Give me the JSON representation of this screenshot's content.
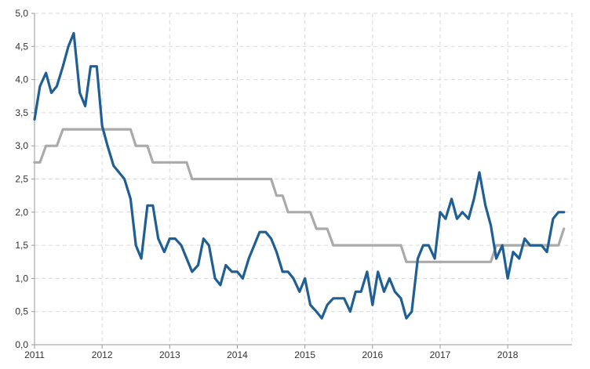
{
  "chart_data": {
    "type": "line",
    "title": "",
    "xlabel": "",
    "ylabel": "",
    "xlim": [
      2011,
      2018.95
    ],
    "ylim": [
      0,
      5
    ],
    "grid": true,
    "legend": "none",
    "x_ticks": [
      2011,
      2012,
      2013,
      2014,
      2015,
      2016,
      2017,
      2018
    ],
    "x_tick_labels": [
      "2011",
      "2012",
      "2013",
      "2014",
      "2015",
      "2016",
      "2017",
      "2018"
    ],
    "y_ticks": [
      0,
      0.5,
      1,
      1.5,
      2,
      2.5,
      3,
      3.5,
      4,
      4.5,
      5
    ],
    "y_tick_labels": [
      "0,0",
      "0,5",
      "1,0",
      "1,5",
      "2,0",
      "2,5",
      "3,0",
      "3,5",
      "4,0",
      "4,5",
      "5,0"
    ],
    "series": [
      {
        "color": "#1f5f94",
        "values": [
          [
            2011.0,
            3.4
          ],
          [
            2011.08,
            3.9
          ],
          [
            2011.17,
            4.1
          ],
          [
            2011.25,
            3.8
          ],
          [
            2011.33,
            3.9
          ],
          [
            2011.42,
            4.2
          ],
          [
            2011.5,
            4.5
          ],
          [
            2011.58,
            4.7
          ],
          [
            2011.67,
            3.8
          ],
          [
            2011.75,
            3.6
          ],
          [
            2011.83,
            4.2
          ],
          [
            2011.92,
            4.2
          ],
          [
            2012.0,
            3.3
          ],
          [
            2012.08,
            3.0
          ],
          [
            2012.17,
            2.7
          ],
          [
            2012.25,
            2.6
          ],
          [
            2012.33,
            2.5
          ],
          [
            2012.42,
            2.2
          ],
          [
            2012.5,
            1.5
          ],
          [
            2012.58,
            1.3
          ],
          [
            2012.67,
            2.1
          ],
          [
            2012.75,
            2.1
          ],
          [
            2012.83,
            1.6
          ],
          [
            2012.92,
            1.4
          ],
          [
            2013.0,
            1.6
          ],
          [
            2013.08,
            1.6
          ],
          [
            2013.17,
            1.5
          ],
          [
            2013.25,
            1.3
          ],
          [
            2013.33,
            1.1
          ],
          [
            2013.42,
            1.2
          ],
          [
            2013.5,
            1.6
          ],
          [
            2013.58,
            1.5
          ],
          [
            2013.67,
            1.0
          ],
          [
            2013.75,
            0.9
          ],
          [
            2013.83,
            1.2
          ],
          [
            2013.92,
            1.1
          ],
          [
            2014.0,
            1.1
          ],
          [
            2014.08,
            1.0
          ],
          [
            2014.17,
            1.3
          ],
          [
            2014.25,
            1.5
          ],
          [
            2014.33,
            1.7
          ],
          [
            2014.42,
            1.7
          ],
          [
            2014.5,
            1.6
          ],
          [
            2014.58,
            1.4
          ],
          [
            2014.67,
            1.1
          ],
          [
            2014.75,
            1.1
          ],
          [
            2014.83,
            1.0
          ],
          [
            2014.92,
            0.8
          ],
          [
            2015.0,
            1.0
          ],
          [
            2015.08,
            0.6
          ],
          [
            2015.17,
            0.5
          ],
          [
            2015.25,
            0.4
          ],
          [
            2015.33,
            0.6
          ],
          [
            2015.42,
            0.7
          ],
          [
            2015.5,
            0.7
          ],
          [
            2015.58,
            0.7
          ],
          [
            2015.67,
            0.5
          ],
          [
            2015.75,
            0.8
          ],
          [
            2015.83,
            0.8
          ],
          [
            2015.92,
            1.1
          ],
          [
            2016.0,
            0.6
          ],
          [
            2016.08,
            1.1
          ],
          [
            2016.17,
            0.8
          ],
          [
            2016.25,
            1.0
          ],
          [
            2016.33,
            0.8
          ],
          [
            2016.42,
            0.7
          ],
          [
            2016.5,
            0.4
          ],
          [
            2016.58,
            0.5
          ],
          [
            2016.67,
            1.3
          ],
          [
            2016.75,
            1.5
          ],
          [
            2016.83,
            1.5
          ],
          [
            2016.92,
            1.3
          ],
          [
            2017.0,
            2.0
          ],
          [
            2017.08,
            1.9
          ],
          [
            2017.17,
            2.2
          ],
          [
            2017.25,
            1.9
          ],
          [
            2017.33,
            2.0
          ],
          [
            2017.42,
            1.9
          ],
          [
            2017.5,
            2.2
          ],
          [
            2017.58,
            2.6
          ],
          [
            2017.67,
            2.1
          ],
          [
            2017.75,
            1.8
          ],
          [
            2017.83,
            1.3
          ],
          [
            2017.92,
            1.5
          ],
          [
            2018.0,
            1.0
          ],
          [
            2018.08,
            1.4
          ],
          [
            2018.17,
            1.3
          ],
          [
            2018.25,
            1.6
          ],
          [
            2018.33,
            1.5
          ],
          [
            2018.42,
            1.5
          ],
          [
            2018.5,
            1.5
          ],
          [
            2018.58,
            1.4
          ],
          [
            2018.67,
            1.9
          ],
          [
            2018.75,
            2.0
          ],
          [
            2018.83,
            2.0
          ]
        ]
      },
      {
        "color": "#aaaaaa",
        "values": [
          [
            2011.0,
            2.75
          ],
          [
            2011.08,
            2.75
          ],
          [
            2011.17,
            3.0
          ],
          [
            2011.25,
            3.0
          ],
          [
            2011.33,
            3.0
          ],
          [
            2011.42,
            3.25
          ],
          [
            2011.5,
            3.25
          ],
          [
            2011.58,
            3.25
          ],
          [
            2011.67,
            3.25
          ],
          [
            2011.75,
            3.25
          ],
          [
            2011.83,
            3.25
          ],
          [
            2011.92,
            3.25
          ],
          [
            2012.0,
            3.25
          ],
          [
            2012.08,
            3.25
          ],
          [
            2012.17,
            3.25
          ],
          [
            2012.25,
            3.25
          ],
          [
            2012.33,
            3.25
          ],
          [
            2012.42,
            3.25
          ],
          [
            2012.5,
            3.0
          ],
          [
            2012.58,
            3.0
          ],
          [
            2012.67,
            3.0
          ],
          [
            2012.75,
            2.75
          ],
          [
            2012.83,
            2.75
          ],
          [
            2012.92,
            2.75
          ],
          [
            2013.0,
            2.75
          ],
          [
            2013.08,
            2.75
          ],
          [
            2013.17,
            2.75
          ],
          [
            2013.25,
            2.75
          ],
          [
            2013.33,
            2.5
          ],
          [
            2013.42,
            2.5
          ],
          [
            2013.5,
            2.5
          ],
          [
            2013.58,
            2.5
          ],
          [
            2013.67,
            2.5
          ],
          [
            2013.75,
            2.5
          ],
          [
            2013.83,
            2.5
          ],
          [
            2013.92,
            2.5
          ],
          [
            2014.0,
            2.5
          ],
          [
            2014.08,
            2.5
          ],
          [
            2014.17,
            2.5
          ],
          [
            2014.25,
            2.5
          ],
          [
            2014.33,
            2.5
          ],
          [
            2014.42,
            2.5
          ],
          [
            2014.5,
            2.5
          ],
          [
            2014.58,
            2.25
          ],
          [
            2014.67,
            2.25
          ],
          [
            2014.75,
            2.0
          ],
          [
            2014.83,
            2.0
          ],
          [
            2014.92,
            2.0
          ],
          [
            2015.0,
            2.0
          ],
          [
            2015.08,
            2.0
          ],
          [
            2015.17,
            1.75
          ],
          [
            2015.25,
            1.75
          ],
          [
            2015.33,
            1.75
          ],
          [
            2015.42,
            1.5
          ],
          [
            2015.5,
            1.5
          ],
          [
            2015.58,
            1.5
          ],
          [
            2015.67,
            1.5
          ],
          [
            2015.75,
            1.5
          ],
          [
            2015.83,
            1.5
          ],
          [
            2015.92,
            1.5
          ],
          [
            2016.0,
            1.5
          ],
          [
            2016.08,
            1.5
          ],
          [
            2016.17,
            1.5
          ],
          [
            2016.25,
            1.5
          ],
          [
            2016.33,
            1.5
          ],
          [
            2016.42,
            1.5
          ],
          [
            2016.5,
            1.25
          ],
          [
            2016.58,
            1.25
          ],
          [
            2016.67,
            1.25
          ],
          [
            2016.75,
            1.25
          ],
          [
            2016.83,
            1.25
          ],
          [
            2016.92,
            1.25
          ],
          [
            2017.0,
            1.25
          ],
          [
            2017.08,
            1.25
          ],
          [
            2017.17,
            1.25
          ],
          [
            2017.25,
            1.25
          ],
          [
            2017.33,
            1.25
          ],
          [
            2017.42,
            1.25
          ],
          [
            2017.5,
            1.25
          ],
          [
            2017.58,
            1.25
          ],
          [
            2017.67,
            1.25
          ],
          [
            2017.75,
            1.25
          ],
          [
            2017.83,
            1.5
          ],
          [
            2017.92,
            1.5
          ],
          [
            2018.0,
            1.5
          ],
          [
            2018.08,
            1.5
          ],
          [
            2018.17,
            1.5
          ],
          [
            2018.25,
            1.5
          ],
          [
            2018.33,
            1.5
          ],
          [
            2018.42,
            1.5
          ],
          [
            2018.5,
            1.5
          ],
          [
            2018.58,
            1.5
          ],
          [
            2018.67,
            1.5
          ],
          [
            2018.75,
            1.5
          ],
          [
            2018.83,
            1.75
          ]
        ]
      }
    ]
  }
}
